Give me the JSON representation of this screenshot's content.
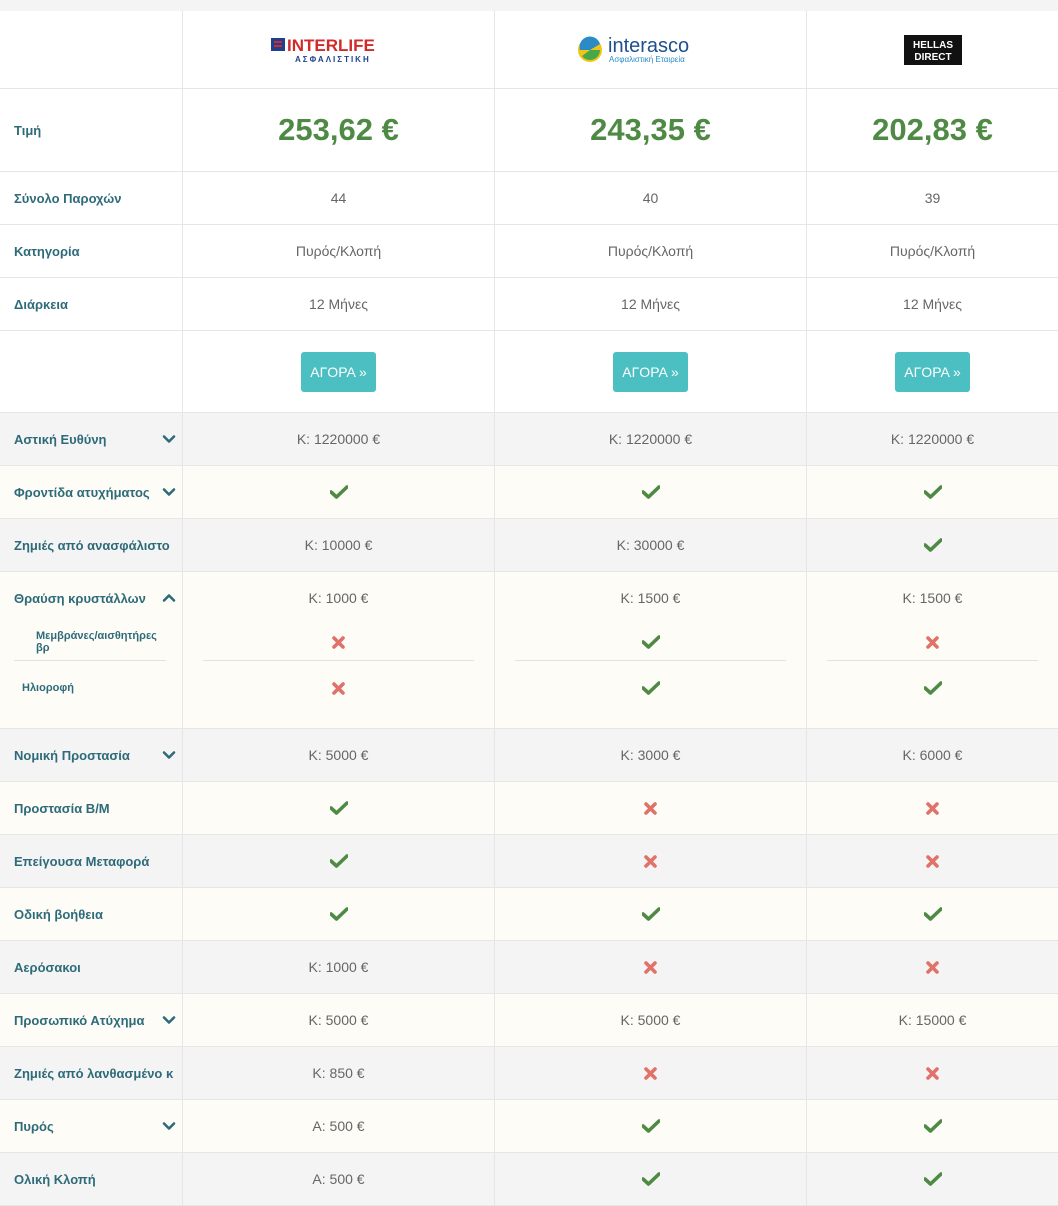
{
  "insurers": [
    {
      "name": "INTERLIFE",
      "sub": "ΑΣΦΑΛΙΣΤΙΚΗ"
    },
    {
      "name": "interasco",
      "sub": "Ασφαλιστική Εταιρεία"
    },
    {
      "name": "HELLAS",
      "sub": "DIRECT"
    }
  ],
  "labels": {
    "price": "Τιμή",
    "total": "Σύνολο Παροχών",
    "category": "Κατηγορία",
    "duration": "Διάρκεια"
  },
  "prices": [
    "253,62 €",
    "243,35 €",
    "202,83 €"
  ],
  "totals": [
    "44",
    "40",
    "39"
  ],
  "categories": [
    "Πυρός/Κλοπή",
    "Πυρός/Κλοπή",
    "Πυρός/Κλοπή"
  ],
  "durations": [
    "12 Μήνες",
    "12 Μήνες",
    "12 Μήνες"
  ],
  "buy_label": "ΑΓΟΡΑ »",
  "rows": [
    {
      "label": "Αστική Ευθύνη",
      "chev": "down",
      "vals": [
        "Κ: 1220000 €",
        "Κ: 1220000 €",
        "Κ: 1220000 €"
      ]
    },
    {
      "label": "Φροντίδα ατυχήματος",
      "chev": "down",
      "vals": [
        "check",
        "check",
        "check"
      ]
    },
    {
      "label": "Ζημιές από ανασφάλιστο",
      "vals": [
        "Κ: 10000 €",
        "Κ: 30000 €",
        "check"
      ]
    },
    {
      "label": "Θραύση κρυστάλλων",
      "chev": "up",
      "vals": [
        "Κ: 1000 €",
        "Κ: 1500 €",
        "Κ: 1500 €"
      ]
    },
    {
      "label": "Μεμβράνες/αισθητήρες βρ",
      "vals": [
        "cross",
        "check",
        "cross"
      ]
    },
    {
      "label": "Ηλιοροφή",
      "vals": [
        "cross",
        "check",
        "check"
      ]
    },
    {
      "label": "Νομική Προστασία",
      "chev": "down",
      "vals": [
        "Κ: 5000 €",
        "Κ: 3000 €",
        "Κ: 6000 €"
      ]
    },
    {
      "label": "Προστασία Β/Μ",
      "vals": [
        "check",
        "cross",
        "cross"
      ]
    },
    {
      "label": "Επείγουσα Μεταφορά",
      "vals": [
        "check",
        "cross",
        "cross"
      ]
    },
    {
      "label": "Οδική βοήθεια",
      "vals": [
        "check",
        "check",
        "check"
      ]
    },
    {
      "label": "Αερόσακοι",
      "vals": [
        "Κ: 1000 €",
        "cross",
        "cross"
      ]
    },
    {
      "label": "Προσωπικό Ατύχημα",
      "chev": "down",
      "vals": [
        "Κ: 5000 €",
        "Κ: 5000 €",
        "Κ: 15000 €"
      ]
    },
    {
      "label": "Ζημιές από λανθασμένο κ",
      "vals": [
        "Κ: 850 €",
        "cross",
        "cross"
      ]
    },
    {
      "label": "Πυρός",
      "chev": "down",
      "vals": [
        "Α: 500 €",
        "check",
        "check"
      ]
    },
    {
      "label": "Ολική Κλοπή",
      "vals": [
        "Α: 500 €",
        "check",
        "check"
      ]
    }
  ]
}
